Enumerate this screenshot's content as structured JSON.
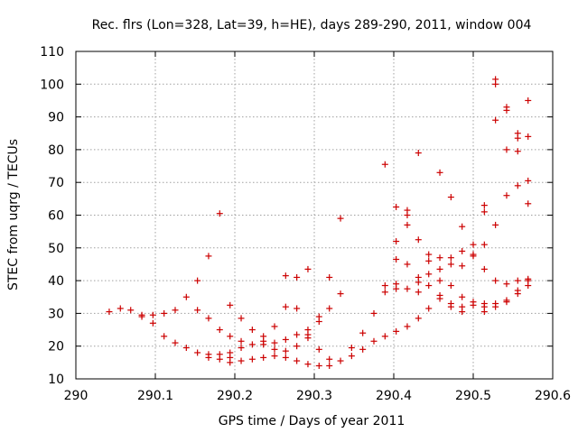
{
  "chart_data": {
    "type": "scatter",
    "title": "Rec. flrs (Lon=328, Lat=39, h=HE), days 289-290, 2011, window 004",
    "xlabel": "GPS time / Days of year 2011",
    "ylabel": "STEC from uqrg / TECUs",
    "xlim": [
      290,
      290.6
    ],
    "ylim": [
      10,
      110
    ],
    "xticks": [
      "290",
      "290.1",
      "290.2",
      "290.3",
      "290.4",
      "290.5",
      "290.6"
    ],
    "yticks": [
      "10",
      "20",
      "30",
      "40",
      "50",
      "60",
      "70",
      "80",
      "90",
      "100",
      "110"
    ],
    "grid": true,
    "legend": "none",
    "marker": "plus",
    "color": "#cc0000",
    "series": [
      {
        "x": [
          290.042,
          290.056,
          290.069,
          290.083,
          290.083,
          290.097,
          290.097,
          290.111,
          290.111,
          290.125,
          290.125,
          290.139,
          290.139,
          290.153,
          290.153,
          290.153,
          290.167,
          290.167,
          290.167,
          290.167,
          290.181,
          290.181,
          290.181,
          290.181,
          290.194,
          290.194,
          290.194,
          290.194,
          290.194,
          290.208,
          290.208,
          290.208,
          290.208,
          290.222,
          290.222,
          290.222,
          290.236,
          290.236,
          290.236,
          290.236,
          290.25,
          290.25,
          290.25,
          290.25,
          290.264,
          290.264,
          290.264,
          290.264,
          290.264,
          290.278,
          290.278,
          290.278,
          290.278,
          290.278,
          290.292,
          290.292,
          290.292,
          290.292,
          290.292,
          290.306,
          290.306,
          290.306,
          290.306,
          290.319,
          290.319,
          290.319,
          290.319,
          290.333,
          290.333,
          290.333,
          290.347,
          290.347,
          290.361,
          290.361,
          290.375,
          290.375,
          290.389,
          290.389,
          290.389,
          290.389,
          290.403,
          290.403,
          290.403,
          290.403,
          290.403,
          290.403,
          290.417,
          290.417,
          290.417,
          290.417,
          290.417,
          290.417,
          290.431,
          290.431,
          290.431,
          290.431,
          290.431,
          290.431,
          290.444,
          290.444,
          290.444,
          290.444,
          290.444,
          290.458,
          290.458,
          290.458,
          290.458,
          290.458,
          290.458,
          290.472,
          290.472,
          290.472,
          290.472,
          290.472,
          290.472,
          290.486,
          290.486,
          290.486,
          290.486,
          290.486,
          290.486,
          290.5,
          290.5,
          290.5,
          290.5,
          290.5,
          290.514,
          290.514,
          290.514,
          290.514,
          290.514,
          290.514,
          290.514,
          290.528,
          290.528,
          290.528,
          290.528,
          290.528,
          290.528,
          290.528,
          290.542,
          290.542,
          290.542,
          290.542,
          290.542,
          290.542,
          290.542,
          290.556,
          290.556,
          290.556,
          290.556,
          290.556,
          290.556,
          290.556,
          290.569,
          290.569,
          290.569,
          290.569,
          290.569,
          290.569,
          290.569
        ],
        "y": [
          30.5,
          31.5,
          31,
          29.5,
          29,
          29.5,
          27,
          23,
          30,
          31,
          21,
          35,
          19.5,
          40,
          31,
          18,
          47.5,
          28.5,
          17.5,
          16.5,
          60.5,
          25,
          17.5,
          16,
          32.5,
          23,
          18,
          16.5,
          15,
          28.5,
          21.5,
          19.5,
          15.5,
          25,
          20.5,
          16,
          23,
          21.5,
          20.5,
          16.5,
          26,
          21,
          19,
          17,
          41.5,
          32,
          22,
          18.5,
          16.5,
          41,
          31.5,
          23.5,
          20,
          15.5,
          43.5,
          25,
          23.5,
          22.5,
          14.5,
          29,
          27.5,
          19,
          14,
          41,
          31.5,
          16,
          14,
          59,
          36,
          15.5,
          19.5,
          17,
          24,
          19,
          30,
          21.5,
          75.5,
          38.5,
          36.5,
          23,
          62.5,
          52,
          46.5,
          39,
          37.5,
          24.5,
          61.5,
          60,
          57,
          45,
          37.5,
          26,
          79,
          52.5,
          41,
          39.5,
          36.5,
          28.5,
          48,
          46,
          42,
          38.5,
          31.5,
          73,
          47,
          43.5,
          40,
          35.5,
          34.5,
          65.5,
          47,
          45,
          38.5,
          33,
          32,
          56.5,
          49,
          44.5,
          35,
          32,
          30.5,
          51,
          48,
          47.5,
          33.5,
          32.5,
          63,
          61,
          51,
          43.5,
          33,
          32,
          30.5,
          101.5,
          100,
          89,
          57,
          40,
          33,
          32,
          93,
          92,
          80,
          66,
          39,
          34,
          33.5,
          85,
          83.5,
          79.5,
          69,
          40,
          37,
          36,
          95,
          84,
          70.5,
          63.5,
          40.5,
          40,
          38.5
        ]
      }
    ]
  }
}
